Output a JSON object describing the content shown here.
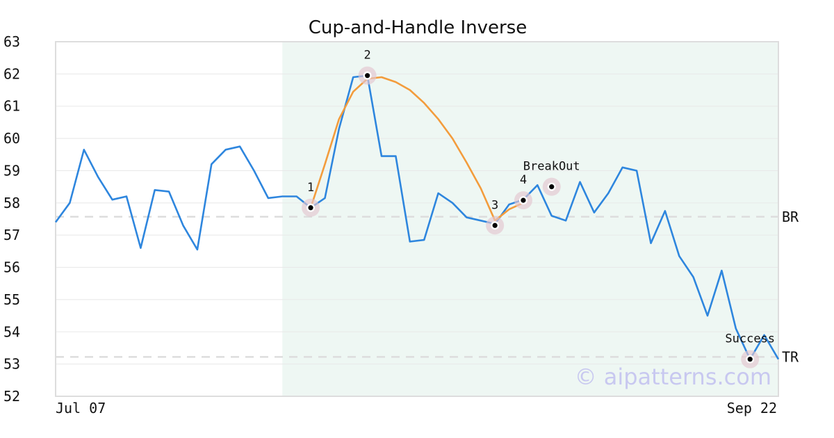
{
  "chart_data": {
    "type": "line",
    "title": "Cup-and-Handle Inverse",
    "xlabel": "",
    "ylabel": "",
    "ylim": [
      52,
      63
    ],
    "yticks": [
      52,
      53,
      54,
      55,
      56,
      57,
      58,
      59,
      60,
      61,
      62,
      63
    ],
    "x_tick_labels": [
      "Jul 07",
      "Sep 22"
    ],
    "grid": "horizontal",
    "series": [
      {
        "color": "#2e86de",
        "values": [
          57.4,
          58.0,
          59.65,
          58.8,
          58.1,
          58.2,
          56.6,
          58.4,
          58.35,
          57.3,
          56.55,
          59.2,
          59.65,
          59.75,
          59.0,
          58.15,
          58.2,
          58.2,
          57.85,
          58.15,
          60.3,
          61.9,
          61.95,
          59.45,
          59.45,
          56.8,
          56.85,
          58.3,
          58.0,
          57.55,
          57.45,
          57.35,
          57.95,
          58.1,
          58.55,
          57.6,
          57.45,
          58.65,
          57.7,
          58.3,
          59.1,
          59.0,
          56.75,
          57.75,
          56.35,
          55.7,
          54.5,
          55.9,
          54.1,
          53.15,
          53.9,
          53.15
        ]
      }
    ],
    "cup_curve": {
      "color": "#f39c3c",
      "points": [
        [
          18,
          57.85
        ],
        [
          19,
          59.2
        ],
        [
          20,
          60.6
        ],
        [
          21,
          61.45
        ],
        [
          22,
          61.85
        ],
        [
          23,
          61.9
        ],
        [
          24,
          61.75
        ],
        [
          25,
          61.5
        ],
        [
          26,
          61.1
        ],
        [
          27,
          60.6
        ],
        [
          28,
          60.0
        ],
        [
          29,
          59.25
        ],
        [
          30,
          58.45
        ],
        [
          31,
          57.45
        ],
        [
          32,
          57.8
        ],
        [
          33,
          58.0
        ]
      ]
    },
    "pattern_region": {
      "x_start": 16,
      "x_end": 51,
      "color": "#eef7f3"
    },
    "levels": [
      {
        "label": "BR",
        "value": 57.57
      },
      {
        "label": "TR",
        "value": 53.22
      }
    ],
    "markers": [
      {
        "label": "1",
        "x": 18,
        "y": 57.85
      },
      {
        "label": "2",
        "x": 22,
        "y": 61.95
      },
      {
        "label": "3",
        "x": 31,
        "y": 57.3
      },
      {
        "label": "4",
        "x": 33,
        "y": 58.08
      },
      {
        "label": "BreakOut",
        "x": 35,
        "y": 58.5
      },
      {
        "label": "Success",
        "x": 49,
        "y": 53.15
      }
    ]
  },
  "watermark": "© aipatterns.com"
}
